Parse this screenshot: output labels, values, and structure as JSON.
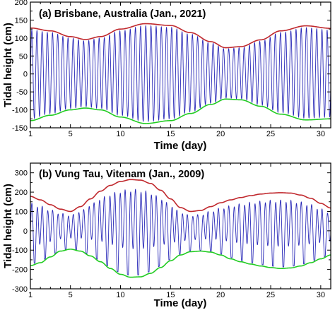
{
  "chart_data": [
    {
      "type": "line",
      "title": "(a) Brisbane, Australia (Jan., 2021)",
      "xlabel": "Time (day)",
      "ylabel": "Tidal height (cm)",
      "xlim": [
        1,
        31
      ],
      "ylim": [
        -150,
        200
      ],
      "xticks": [
        1,
        5,
        10,
        15,
        20,
        25,
        30
      ],
      "yticks": [
        -150,
        -100,
        -50,
        0,
        50,
        100,
        150,
        200
      ],
      "tidal_signal": {
        "color": "#2a2ab8",
        "period_days": 0.5175,
        "phase": 0.3,
        "diurnal_inequality": 0.0
      },
      "series": [
        {
          "role": "upper-envelope",
          "color": "#c0282d",
          "x": [
            1,
            3,
            5,
            6.5,
            8,
            10,
            12.5,
            15,
            17,
            19,
            20.5,
            22,
            24,
            26,
            28.5,
            31
          ],
          "values": [
            128,
            120,
            104,
            96,
            104,
            125,
            140,
            135,
            115,
            90,
            73,
            76,
            95,
            120,
            134,
            127
          ]
        },
        {
          "role": "lower-envelope",
          "color": "#22cc22",
          "x": [
            1,
            3,
            5,
            6.5,
            8,
            10,
            12.5,
            15,
            17,
            19,
            20.5,
            22,
            24,
            26,
            28.5,
            31
          ],
          "values": [
            -130,
            -115,
            -100,
            -95,
            -100,
            -120,
            -138,
            -130,
            -110,
            -85,
            -70,
            -72,
            -90,
            -112,
            -128,
            -125
          ]
        }
      ]
    },
    {
      "type": "line",
      "title": "(b) Vung Tau, Vitenam (Jan., 2009)",
      "xlabel": "Time (day)",
      "ylabel": "Tidal height (cm)",
      "xlim": [
        1,
        31
      ],
      "ylim": [
        -300,
        350
      ],
      "xticks": [
        1,
        5,
        10,
        15,
        20,
        25,
        30
      ],
      "yticks": [
        -300,
        -200,
        -100,
        0,
        100,
        200,
        300
      ],
      "tidal_signal": {
        "color": "#2a2ab8",
        "period_days": 0.5175,
        "phase": 0.0,
        "diurnal_inequality": 0.6
      },
      "series": [
        {
          "role": "upper-envelope",
          "color": "#c0282d",
          "x": [
            1,
            2,
            3,
            4,
            5,
            6,
            7,
            8,
            9,
            10,
            11,
            12,
            13,
            14,
            15,
            16,
            17,
            18,
            19,
            20,
            21,
            22,
            23,
            24,
            25,
            26,
            27,
            28,
            29,
            30,
            31
          ],
          "values": [
            178,
            160,
            135,
            112,
            100,
            125,
            165,
            205,
            235,
            255,
            265,
            262,
            245,
            210,
            165,
            120,
            100,
            105,
            125,
            145,
            160,
            172,
            182,
            190,
            195,
            197,
            195,
            185,
            168,
            142,
            118
          ]
        },
        {
          "role": "lower-envelope",
          "color": "#22cc22",
          "x": [
            1,
            2,
            3,
            4,
            5,
            6,
            7,
            8,
            9,
            10,
            11,
            12,
            13,
            14,
            15,
            16,
            17,
            18,
            19,
            20,
            21,
            22,
            23,
            24,
            25,
            26,
            27,
            28,
            29,
            30,
            31
          ],
          "values": [
            -180,
            -165,
            -135,
            -105,
            -95,
            -105,
            -130,
            -160,
            -195,
            -225,
            -240,
            -238,
            -220,
            -190,
            -155,
            -125,
            -108,
            -105,
            -110,
            -125,
            -145,
            -160,
            -172,
            -182,
            -190,
            -195,
            -192,
            -182,
            -165,
            -145,
            -125
          ]
        }
      ]
    }
  ]
}
